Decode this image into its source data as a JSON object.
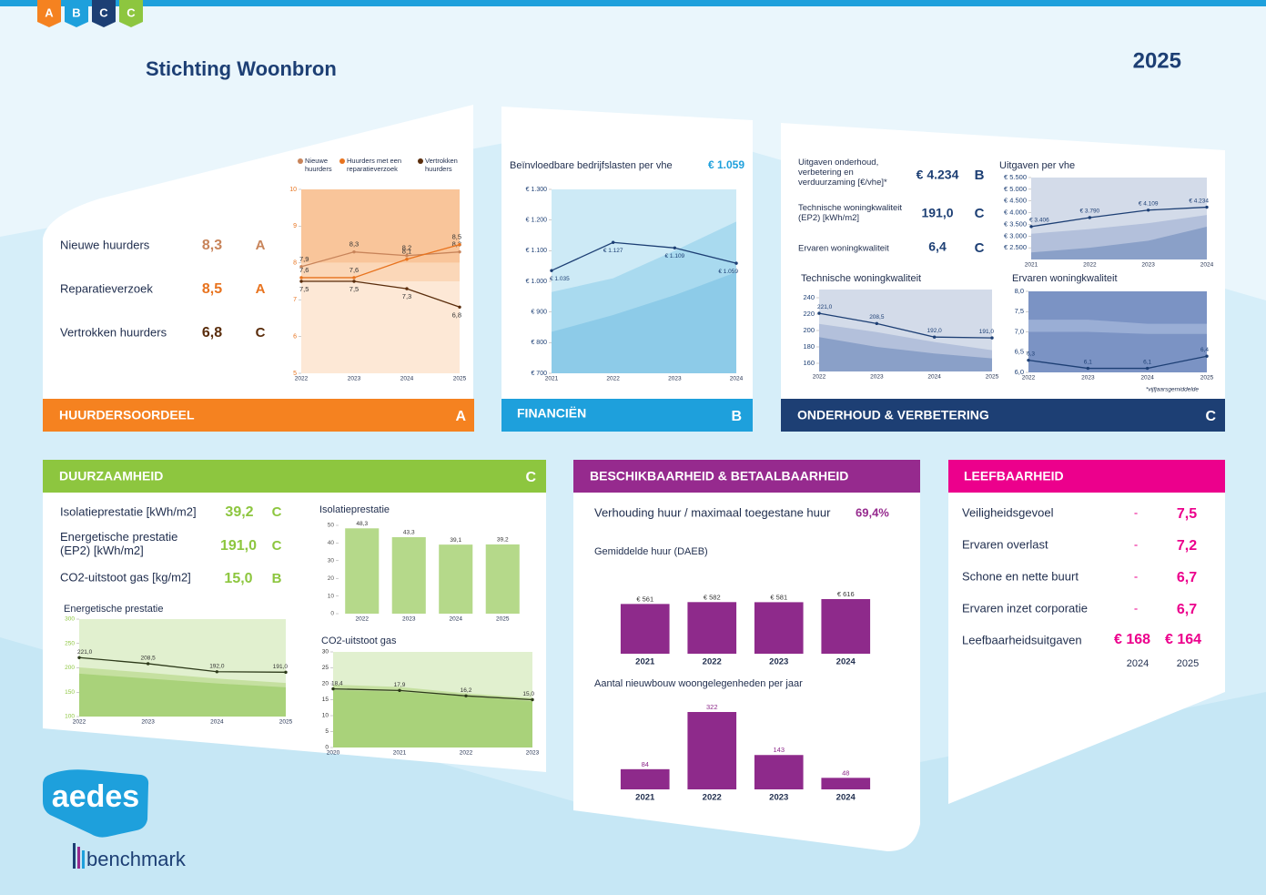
{
  "header": {
    "badges": [
      "A",
      "B",
      "C",
      "C"
    ],
    "organisation": "Stichting Woonbron",
    "year": "2025"
  },
  "panels": [
    {
      "title": "HUURDERSOORDEEL",
      "grade": "A",
      "rows": [
        {
          "label": "Nieuwe huurders",
          "value": "8,3",
          "grade": "A"
        },
        {
          "label": "Reparatieverzoek",
          "value": "8,5",
          "grade": "A"
        },
        {
          "label": "Vertrokken huurders",
          "value": "6,8",
          "grade": "C"
        }
      ]
    },
    {
      "title": "FINANCIËN",
      "grade": "B",
      "value": "€ 1.059"
    },
    {
      "title": "ONDERHOUD & VERBETERING",
      "grade": "C",
      "rows": [
        {
          "label": "Uitgaven onderhoud, verbetering en verduurzaming [€/vhe]*",
          "value": "€ 4.234",
          "grade": "B"
        },
        {
          "label": "Technische woningkwaliteit (EP2) [kWh/m2]",
          "value": "191,0",
          "grade": "C"
        },
        {
          "label": "Ervaren woningkwaliteit",
          "value": "6,4",
          "grade": "C"
        }
      ],
      "note": "*vijfjaarsgemiddelde"
    },
    {
      "title": "DUURZAAMHEID",
      "grade": "C",
      "rows": [
        {
          "label": "Isolatieprestatie [kWh/m2]",
          "value": "39,2",
          "grade": "C"
        },
        {
          "label": "Energetische prestatie (EP2) [kWh/m2]",
          "value": "191,0",
          "grade": "C"
        },
        {
          "label": "CO2-uitstoot gas [kg/m2]",
          "value": "15,0",
          "grade": "B"
        }
      ]
    },
    {
      "title": "BESCHIKBAARHEID & BETAALBAARHEID",
      "rows": [
        {
          "label": "Verhouding huur / maximaal toegestane huur",
          "value": "69,4%"
        }
      ]
    },
    {
      "title": "LEEFBAARHEID",
      "rows": [
        {
          "label": "Veiligheidsgevoel",
          "trend": "-",
          "value": "7,5"
        },
        {
          "label": "Ervaren overlast",
          "trend": "-",
          "value": "7,2"
        },
        {
          "label": "Schone en nette buurt",
          "trend": "-",
          "value": "6,7"
        },
        {
          "label": "Ervaren inzet corporatie",
          "trend": "-",
          "value": "6,7"
        },
        {
          "label": "Leefbaarheidsuitgaven",
          "values": [
            "€ 168",
            "€ 164"
          ],
          "years": [
            "2024",
            "2025"
          ]
        }
      ]
    }
  ],
  "logo": {
    "name": "aedes",
    "product": "benchmark"
  },
  "chart_data": [
    {
      "type": "line",
      "categories": [
        "2022",
        "2023",
        "2024",
        "2025"
      ],
      "ylim": [
        5,
        10
      ],
      "yticks": [
        5,
        6,
        7,
        8,
        9,
        10
      ],
      "zones": [
        {
          "from": 8,
          "to": 10,
          "color": "#f9c59a"
        },
        {
          "from": 7.5,
          "to": 8,
          "color": "#fbd7b8"
        },
        {
          "from": 5,
          "to": 7.5,
          "color": "#fde8d6"
        }
      ],
      "legend": true,
      "series": [
        {
          "name": "Nieuwe huurders",
          "color": "#c8845a",
          "values": [
            7.9,
            8.3,
            8.2,
            8.3
          ],
          "value_labels": [
            "7,9",
            "8,3",
            "8,2",
            "8,3"
          ]
        },
        {
          "name": "Huurders met een reparatieverzoek",
          "color": "#e8731e",
          "values": [
            7.6,
            7.6,
            8.1,
            8.5
          ],
          "value_labels": [
            "7,6",
            "7,6",
            "8,1",
            "8,5"
          ]
        },
        {
          "name": "Vertrokken huurders",
          "color": "#5a2d0c",
          "values": [
            7.5,
            7.5,
            7.3,
            6.8
          ],
          "value_labels": [
            "7,5",
            "7,5",
            "7,3",
            "6,8"
          ]
        }
      ]
    },
    {
      "type": "line",
      "title": "Beïnvloedbare bedrijfslasten per vhe",
      "categories": [
        "2021",
        "2022",
        "2023",
        "2024"
      ],
      "ylim": [
        700,
        1300
      ],
      "yticks": [
        {
          "value": 700,
          "label": "€ 700"
        },
        {
          "value": 800,
          "label": "€ 800"
        },
        {
          "value": 900,
          "label": "€ 900"
        },
        {
          "value": 1000,
          "label": "€ 1.000"
        },
        {
          "value": 1100,
          "label": "€ 1.100"
        },
        {
          "value": 1200,
          "label": "€ 1.200"
        },
        {
          "value": 1300,
          "label": "€ 1.300"
        }
      ],
      "plot_color": "#cdeaf6",
      "bands": [
        {
          "color": "#a9daef",
          "values": [
            965,
            1010,
            1100,
            1195
          ]
        },
        {
          "color": "#8dcbe8",
          "values": [
            835,
            890,
            955,
            1030
          ]
        }
      ],
      "series": [
        {
          "color": "#1d3f74",
          "values": [
            1035,
            1127,
            1109,
            1059
          ],
          "value_labels": [
            "€ 1.035",
            "€ 1.127",
            "€ 1.109",
            "€ 1.059"
          ]
        }
      ]
    },
    {
      "type": "line",
      "title": "Uitgaven per vhe",
      "categories": [
        "2021",
        "2022",
        "2023",
        "2024"
      ],
      "ylim": [
        2000,
        5500
      ],
      "yticks": [
        {
          "value": 2500,
          "label": "€ 2.500"
        },
        {
          "value": 3000,
          "label": "€ 3.000"
        },
        {
          "value": 3500,
          "label": "€ 3.500"
        },
        {
          "value": 4000,
          "label": "€ 4.000"
        },
        {
          "value": 4500,
          "label": "€ 4.500"
        },
        {
          "value": 5000,
          "label": "€ 5.000"
        },
        {
          "value": 5500,
          "label": "€ 5.500"
        }
      ],
      "plot_color": "#d3dbe9",
      "bands": [
        {
          "color": "#b3c0db",
          "values": [
            3100,
            3300,
            3550,
            3900
          ]
        },
        {
          "color": "#8aa0c8",
          "values": [
            2300,
            2500,
            2800,
            3400
          ]
        }
      ],
      "series": [
        {
          "color": "#1d3f74",
          "values": [
            3406,
            3790,
            4109,
            4234
          ],
          "value_labels": [
            "€ 3.406",
            "€ 3.790",
            "€ 4.109",
            "€ 4.234"
          ]
        }
      ]
    },
    {
      "type": "line",
      "title": "Technische woningkwaliteit",
      "categories": [
        "2022",
        "2023",
        "2024",
        "2025"
      ],
      "ylim": [
        150,
        250
      ],
      "yticks": [
        160,
        180,
        200,
        220,
        240
      ],
      "plot_color": "#d3dbe9",
      "bands": [
        {
          "color": "#b3c0db",
          "values": [
            208,
            198,
            186,
            176
          ]
        },
        {
          "color": "#8aa0c8",
          "values": [
            192,
            180,
            172,
            166
          ]
        }
      ],
      "series": [
        {
          "color": "#1d3f74",
          "values": [
            221.0,
            208.5,
            192.0,
            191.0
          ],
          "value_labels": [
            "221,0",
            "208,5",
            "192,0",
            "191,0"
          ]
        }
      ]
    },
    {
      "type": "line",
      "title": "Ervaren woningkwaliteit",
      "categories": [
        "2022",
        "2023",
        "2024",
        "2025"
      ],
      "ylim": [
        6,
        8
      ],
      "yticks": [
        {
          "value": 6,
          "label": "6,0"
        },
        {
          "value": 6.5,
          "label": "6,5"
        },
        {
          "value": 7,
          "label": "7,0"
        },
        {
          "value": 7.5,
          "label": "7,5"
        },
        {
          "value": 8,
          "label": "8,0"
        }
      ],
      "plot_color": "#7b93c4",
      "bands": [
        {
          "color": "#9aaed5",
          "values": [
            7.3,
            7.3,
            7.2,
            7.2
          ]
        },
        {
          "color": "#7b93c4",
          "values": [
            7.0,
            7.0,
            6.95,
            6.95
          ]
        }
      ],
      "series": [
        {
          "color": "#1d3f74",
          "values": [
            6.3,
            6.1,
            6.1,
            6.4
          ],
          "value_labels": [
            "6,3",
            "6,1",
            "6,1",
            "6,4"
          ]
        }
      ]
    },
    {
      "type": "bar",
      "title": "Isolatieprestatie",
      "categories": [
        "2022",
        "2023",
        "2024",
        "2025"
      ],
      "ylim": [
        0,
        50
      ],
      "yticks": [
        0,
        10,
        20,
        30,
        40,
        50
      ],
      "color": "#b5d98a",
      "values": [
        48.3,
        43.3,
        39.1,
        39.2
      ],
      "value_labels": [
        "48,3",
        "43,3",
        "39,1",
        "39,2"
      ]
    },
    {
      "type": "line",
      "title": "Energetische prestatie",
      "categories": [
        "2022",
        "2023",
        "2024",
        "2025"
      ],
      "ylim": [
        100,
        300
      ],
      "yticks": [
        100,
        150,
        200,
        250,
        300
      ],
      "plot_color": "#e1f0cf",
      "bands": [
        {
          "color": "#c5e0a0",
          "values": [
            201,
            190,
            178,
            169
          ]
        },
        {
          "color": "#a9d27a",
          "values": [
            188,
            178,
            168,
            160
          ]
        }
      ],
      "series": [
        {
          "color": "#2d3a1a",
          "values": [
            221.0,
            208.5,
            192.0,
            191.0
          ],
          "value_labels": [
            "221,0",
            "208,5",
            "192,0",
            "191,0"
          ]
        }
      ]
    },
    {
      "type": "line",
      "title": "CO2-uitstoot gas",
      "categories": [
        "2020",
        "2021",
        "2022",
        "2023"
      ],
      "ylim": [
        0,
        30
      ],
      "yticks": [
        0,
        5,
        10,
        15,
        20,
        25,
        30
      ],
      "plot_color": "#e1f0cf",
      "bands": [
        {
          "color": "#c5e0a0",
          "values": [
            19.7,
            19,
            17,
            15.5
          ]
        },
        {
          "color": "#a9d27a",
          "values": [
            18,
            17.5,
            16,
            14.5
          ]
        }
      ],
      "series": [
        {
          "color": "#2d3a1a",
          "values": [
            18.4,
            17.9,
            16.2,
            15.0
          ],
          "value_labels": [
            "18,4",
            "17,9",
            "16,2",
            "15,0"
          ]
        }
      ]
    },
    {
      "type": "bar",
      "title": "Gemiddelde huur (DAEB)",
      "categories": [
        "2021",
        "2022",
        "2023",
        "2024"
      ],
      "color": "#8e2a8b",
      "values": [
        561,
        582,
        581,
        616
      ],
      "value_labels": [
        "€ 561",
        "€ 582",
        "€ 581",
        "€ 616"
      ]
    },
    {
      "type": "bar",
      "title": "Aantal nieuwbouw woongelegenheden per jaar",
      "categories": [
        "2021",
        "2022",
        "2023",
        "2024"
      ],
      "color": "#8e2a8b",
      "values": [
        84,
        322,
        143,
        48
      ]
    }
  ]
}
